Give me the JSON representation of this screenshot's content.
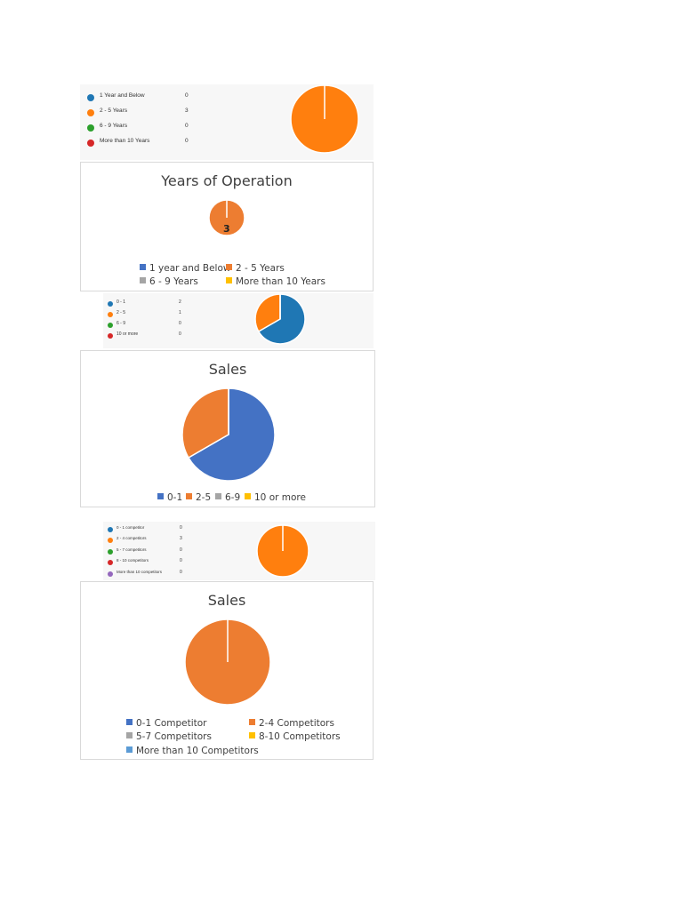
{
  "chart_data": [
    {
      "type": "pie",
      "title": "",
      "categories": [
        "1 Year and Below",
        "2 - 5 Years",
        "6 - 9 Years",
        "More than 10 Years"
      ],
      "values": [
        0,
        3,
        0,
        0
      ],
      "colors": [
        "#1f77b4",
        "#ff7f0e",
        "#2ca02c",
        "#d62728"
      ],
      "legend": "left-with-values"
    },
    {
      "type": "pie",
      "title": "Years of Operation",
      "categories": [
        "1 year and Below",
        "2 - 5 Years",
        "6 - 9 Years",
        "More than 10 Years"
      ],
      "values": [
        0,
        3,
        0,
        0
      ],
      "colors": [
        "#4472c4",
        "#ed7d31",
        "#a5a5a5",
        "#ffc000"
      ],
      "data_labels": [
        "",
        "3",
        "",
        ""
      ],
      "legend": "bottom"
    },
    {
      "type": "pie",
      "title": "",
      "categories": [
        "0 - 1",
        "2 - 5",
        "6 - 9",
        "10 or more"
      ],
      "values": [
        2,
        1,
        0,
        0
      ],
      "colors": [
        "#1f77b4",
        "#ff7f0e",
        "#2ca02c",
        "#d62728"
      ],
      "legend": "left-with-values"
    },
    {
      "type": "pie",
      "title": "Sales",
      "categories": [
        "0-1",
        "2-5",
        "6-9",
        "10 or more"
      ],
      "values": [
        2,
        1,
        0,
        0
      ],
      "colors": [
        "#4472c4",
        "#ed7d31",
        "#a5a5a5",
        "#ffc000"
      ],
      "legend": "bottom"
    },
    {
      "type": "pie",
      "title": "",
      "categories": [
        "0 - 1 competitor",
        "2 - 4 competitors",
        "5 - 7 competitors",
        "8 - 10 competitors",
        "More than 10 competitors"
      ],
      "values": [
        0,
        3,
        0,
        0,
        0
      ],
      "colors": [
        "#1f77b4",
        "#ff7f0e",
        "#2ca02c",
        "#d62728",
        "#9467bd"
      ],
      "legend": "left-with-values"
    },
    {
      "type": "pie",
      "title": "Sales",
      "categories": [
        "0-1 Competitor",
        "2-4 Competitors",
        "5-7 Competitors",
        "8-10 Competitors",
        "More than 10 Competitors"
      ],
      "values": [
        0,
        3,
        0,
        0,
        0
      ],
      "colors": [
        "#4472c4",
        "#ed7d31",
        "#a5a5a5",
        "#ffc000",
        "#5b9bd5"
      ],
      "legend": "bottom"
    }
  ]
}
